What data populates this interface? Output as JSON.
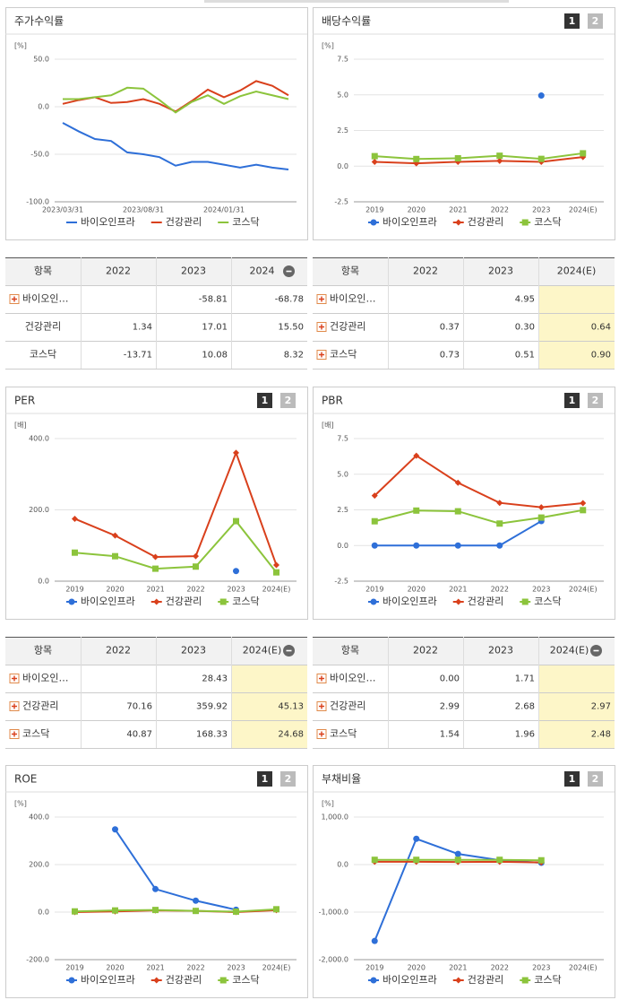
{
  "chart_data": [
    {
      "type": "line",
      "title": "주가수익률",
      "unit": "[%]",
      "categories": [
        "2023/03/31",
        null,
        null,
        null,
        null,
        "2023/08/31",
        null,
        null,
        null,
        null,
        "2024/01/31",
        null,
        null,
        null,
        null
      ],
      "series": [
        {
          "name": "바이오인프라",
          "color": "#2e6fd8",
          "marker": "none",
          "values": [
            -17,
            -26,
            -34,
            -36,
            -48,
            -50,
            -53,
            -62,
            -58,
            -58,
            -61,
            -64,
            -61,
            -64,
            -66
          ]
        },
        {
          "name": "건강관리",
          "color": "#d9401c",
          "marker": "none",
          "values": [
            3,
            7,
            10,
            4,
            5,
            8,
            3,
            -5,
            6,
            18,
            10,
            17,
            27,
            22,
            12
          ]
        },
        {
          "name": "코스닥",
          "color": "#8cc43c",
          "marker": "none",
          "values": [
            8,
            8,
            10,
            12,
            20,
            19,
            7,
            -6,
            5,
            12,
            3,
            11,
            16,
            12,
            8
          ]
        }
      ],
      "ylim": [
        -100,
        50
      ],
      "yticks": [
        {
          "value": 50,
          "label": "50.0"
        },
        {
          "value": 0,
          "label": "0.0"
        },
        {
          "value": -50,
          "label": "-50.0"
        },
        {
          "value": -100,
          "label": "-100.0"
        }
      ],
      "grid": true
    },
    {
      "type": "line",
      "title": "배당수익률",
      "unit": "[%]",
      "tabs": [
        "1",
        "2"
      ],
      "categories": [
        "2019",
        "2020",
        "2021",
        "2022",
        "2023",
        "2024(E)"
      ],
      "series": [
        {
          "name": "바이오인프라",
          "color": "#2e6fd8",
          "marker": "circle",
          "values": [
            null,
            null,
            null,
            null,
            4.95,
            null
          ]
        },
        {
          "name": "건강관리",
          "color": "#d9401c",
          "marker": "diamond",
          "values": [
            0.3,
            0.2,
            0.3,
            0.37,
            0.3,
            0.64
          ]
        },
        {
          "name": "코스닥",
          "color": "#8cc43c",
          "marker": "square",
          "values": [
            0.7,
            0.5,
            0.55,
            0.73,
            0.51,
            0.9
          ]
        }
      ],
      "ylim": [
        -2.5,
        7.5
      ],
      "yticks": [
        {
          "value": 7.5,
          "label": "7.5"
        },
        {
          "value": 5,
          "label": "5.0"
        },
        {
          "value": 2.5,
          "label": "2.5"
        },
        {
          "value": 0,
          "label": "0.0"
        },
        {
          "value": -2.5,
          "label": "-2.5"
        }
      ],
      "grid": true
    },
    {
      "type": "line",
      "title": "PER",
      "unit": "[배]",
      "tabs": [
        "1",
        "2"
      ],
      "categories": [
        "2019",
        "2020",
        "2021",
        "2022",
        "2023",
        "2024(E)"
      ],
      "series": [
        {
          "name": "바이오인프라",
          "color": "#2e6fd8",
          "marker": "circle",
          "values": [
            null,
            null,
            null,
            null,
            28.43,
            null
          ]
        },
        {
          "name": "건강관리",
          "color": "#d9401c",
          "marker": "diamond",
          "values": [
            175,
            128,
            68,
            70.16,
            359.92,
            45.13
          ]
        },
        {
          "name": "코스닥",
          "color": "#8cc43c",
          "marker": "square",
          "values": [
            80,
            70,
            35,
            40.87,
            168.33,
            24.68
          ]
        }
      ],
      "ylim": [
        0,
        400
      ],
      "yticks": [
        {
          "value": 400,
          "label": "400.0"
        },
        {
          "value": 200,
          "label": "200.0"
        },
        {
          "value": 0,
          "label": "0.0"
        }
      ],
      "grid": true
    },
    {
      "type": "line",
      "title": "PBR",
      "unit": "[배]",
      "tabs": [
        "1",
        "2"
      ],
      "categories": [
        "2019",
        "2020",
        "2021",
        "2022",
        "2023",
        "2024(E)"
      ],
      "series": [
        {
          "name": "바이오인프라",
          "color": "#2e6fd8",
          "marker": "circle",
          "values": [
            0,
            0,
            0,
            0,
            1.71,
            null
          ]
        },
        {
          "name": "건강관리",
          "color": "#d9401c",
          "marker": "diamond",
          "values": [
            3.5,
            6.3,
            4.4,
            2.99,
            2.68,
            2.97
          ]
        },
        {
          "name": "코스닥",
          "color": "#8cc43c",
          "marker": "square",
          "values": [
            1.7,
            2.45,
            2.4,
            1.54,
            1.96,
            2.48
          ]
        }
      ],
      "ylim": [
        -2.5,
        7.5
      ],
      "yticks": [
        {
          "value": 7.5,
          "label": "7.5"
        },
        {
          "value": 5,
          "label": "5.0"
        },
        {
          "value": 2.5,
          "label": "2.5"
        },
        {
          "value": 0,
          "label": "0.0"
        },
        {
          "value": -2.5,
          "label": "-2.5"
        }
      ],
      "grid": true
    },
    {
      "type": "line",
      "title": "ROE",
      "unit": "[%]",
      "tabs": [
        "1",
        "2"
      ],
      "categories": [
        "2019",
        "2020",
        "2021",
        "2022",
        "2023",
        "2024(E)"
      ],
      "series": [
        {
          "name": "바이오인프라",
          "color": "#2e6fd8",
          "marker": "circle",
          "values": [
            null,
            348,
            97,
            48,
            10,
            null
          ]
        },
        {
          "name": "건강관리",
          "color": "#d9401c",
          "marker": "diamond",
          "values": [
            0,
            3,
            7,
            5,
            0,
            8
          ]
        },
        {
          "name": "코스닥",
          "color": "#8cc43c",
          "marker": "square",
          "values": [
            3,
            7,
            9,
            5,
            2,
            12
          ]
        }
      ],
      "ylim": [
        -200,
        400
      ],
      "yticks": [
        {
          "value": 400,
          "label": "400.0"
        },
        {
          "value": 200,
          "label": "200.0"
        },
        {
          "value": 0,
          "label": "0.0"
        },
        {
          "value": -200,
          "label": "-200.0"
        }
      ],
      "grid": true
    },
    {
      "type": "line",
      "title": "부채비율",
      "unit": "[%]",
      "tabs": [
        "1",
        "2"
      ],
      "categories": [
        "2019",
        "2020",
        "2021",
        "2022",
        "2023",
        "2024(E)"
      ],
      "series": [
        {
          "name": "바이오인프라",
          "color": "#2e6fd8",
          "marker": "circle",
          "values": [
            -1607,
            542,
            224,
            93,
            37,
            null
          ]
        },
        {
          "name": "건강관리",
          "color": "#d9401c",
          "marker": "diamond",
          "values": [
            60,
            60,
            55,
            60,
            45,
            null
          ]
        },
        {
          "name": "코스닥",
          "color": "#8cc43c",
          "marker": "square",
          "values": [
            100,
            100,
            100,
            100,
            90,
            null
          ]
        }
      ],
      "ylim": [
        -2000,
        1000
      ],
      "yticks": [
        {
          "value": 1000,
          "label": "1,000.0"
        },
        {
          "value": 0,
          "label": "0.0"
        },
        {
          "value": -1000,
          "label": "-1,000.0"
        },
        {
          "value": -2000,
          "label": "-2,000.0"
        }
      ],
      "grid": true
    }
  ],
  "tables": [
    {
      "header": [
        "항목",
        "2022",
        "2023",
        "2024"
      ],
      "header_icon": true,
      "expand_rows": [
        0
      ],
      "rows": [
        [
          "바이오인…",
          null,
          "-58.81",
          "-68.78"
        ],
        [
          "건강관리",
          "1.34",
          "17.01",
          "15.50"
        ],
        [
          "코스닥",
          "-13.71",
          "10.08",
          "8.32"
        ]
      ]
    },
    {
      "header": [
        "항목",
        "2022",
        "2023",
        "2024(E)"
      ],
      "header_icon": false,
      "expand_rows": [
        0,
        1,
        2
      ],
      "highlight_column": 3,
      "rows": [
        [
          "바이오인…",
          null,
          "4.95",
          null
        ],
        [
          "건강관리",
          "0.37",
          "0.30",
          "0.64"
        ],
        [
          "코스닥",
          "0.73",
          "0.51",
          "0.90"
        ]
      ]
    },
    {
      "header": [
        "항목",
        "2022",
        "2023",
        "2024(E)"
      ],
      "header_icon": true,
      "expand_rows": [
        0,
        1,
        2
      ],
      "highlight_column": 3,
      "rows": [
        [
          "바이오인…",
          null,
          "28.43",
          null
        ],
        [
          "건강관리",
          "70.16",
          "359.92",
          "45.13"
        ],
        [
          "코스닥",
          "40.87",
          "168.33",
          "24.68"
        ]
      ]
    },
    {
      "header": [
        "항목",
        "2022",
        "2023",
        "2024(E)"
      ],
      "header_icon": true,
      "expand_rows": [
        0,
        1,
        2
      ],
      "highlight_column": 3,
      "rows": [
        [
          "바이오인…",
          "0.00",
          "1.71",
          null
        ],
        [
          "건강관리",
          "2.99",
          "2.68",
          "2.97"
        ],
        [
          "코스닥",
          "1.54",
          "1.96",
          "2.48"
        ]
      ]
    }
  ]
}
